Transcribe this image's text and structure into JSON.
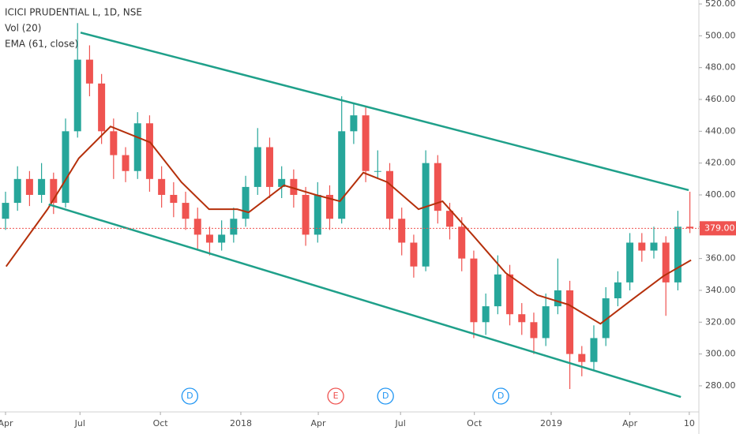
{
  "chart_data": {
    "type": "candlestick",
    "title": "ICICI PRUDENTIAL L, 1D, NSE",
    "indicators": [
      "Vol (20)",
      "EMA (61, close)"
    ],
    "x": [
      0,
      2,
      4,
      6,
      8,
      10,
      12,
      14,
      16,
      18,
      20,
      22,
      24,
      26,
      28,
      30,
      32,
      34,
      36,
      38,
      40,
      42,
      44,
      46,
      48,
      50,
      52,
      54,
      56,
      58,
      60,
      62,
      64,
      66,
      68,
      70,
      72,
      74,
      76,
      78,
      80,
      82,
      84,
      86,
      88,
      90,
      92,
      94,
      96,
      98,
      100,
      102,
      104,
      106,
      108,
      110,
      112,
      114
    ],
    "open": [
      385,
      395,
      410,
      400,
      410,
      395,
      440,
      485,
      470,
      440,
      425,
      415,
      445,
      410,
      400,
      395,
      385,
      375,
      370,
      375,
      385,
      405,
      430,
      405,
      410,
      400,
      375,
      400,
      385,
      440,
      450,
      415,
      415,
      385,
      370,
      355,
      420,
      390,
      380,
      360,
      320,
      330,
      350,
      325,
      320,
      310,
      330,
      340,
      300,
      295,
      310,
      335,
      345,
      370,
      365,
      370,
      345,
      380
    ],
    "high": [
      402,
      418,
      415,
      420,
      414,
      448,
      508,
      494,
      476,
      448,
      430,
      452,
      450,
      418,
      408,
      402,
      392,
      380,
      384,
      392,
      412,
      442,
      436,
      418,
      416,
      405,
      408,
      406,
      462,
      458,
      455,
      428,
      420,
      392,
      375,
      428,
      425,
      395,
      386,
      365,
      338,
      362,
      356,
      332,
      326,
      338,
      360,
      346,
      305,
      318,
      342,
      352,
      376,
      376,
      380,
      374,
      390,
      402
    ],
    "low": [
      378,
      390,
      393,
      395,
      388,
      392,
      436,
      462,
      432,
      410,
      408,
      410,
      402,
      392,
      386,
      378,
      366,
      362,
      365,
      370,
      380,
      400,
      398,
      398,
      392,
      368,
      370,
      378,
      382,
      432,
      408,
      410,
      378,
      362,
      348,
      352,
      382,
      372,
      352,
      310,
      312,
      325,
      318,
      312,
      300,
      305,
      325,
      278,
      286,
      290,
      305,
      330,
      340,
      358,
      360,
      324,
      340,
      376
    ],
    "close": [
      395,
      410,
      400,
      410,
      395,
      440,
      485,
      470,
      440,
      425,
      415,
      445,
      410,
      400,
      395,
      385,
      375,
      370,
      375,
      385,
      405,
      430,
      405,
      410,
      400,
      375,
      400,
      385,
      440,
      450,
      415,
      415,
      385,
      370,
      355,
      420,
      390,
      380,
      360,
      320,
      330,
      350,
      325,
      320,
      310,
      330,
      340,
      300,
      295,
      310,
      335,
      345,
      370,
      365,
      370,
      345,
      380,
      379
    ],
    "up_color": "#26a69a",
    "down_color": "#ef5350",
    "ema": {
      "color": "#b5300b",
      "x": [
        0.1,
        7,
        12.2,
        17.5,
        24.1,
        29.3,
        33.9,
        38.6,
        40.5,
        46.4,
        51.7,
        55.7,
        59.6,
        63.6,
        68.8,
        72.8,
        78,
        83.3,
        88.6,
        93.8,
        99.1,
        104.3,
        109.6,
        114.2
      ],
      "values": [
        355,
        391,
        423,
        443,
        433,
        408,
        391,
        391,
        389,
        406,
        400,
        396,
        414,
        408,
        391,
        396,
        374,
        351,
        337,
        331,
        319,
        334,
        349,
        359
      ]
    },
    "trendlines": [
      {
        "color": "#1fa08a",
        "x": [
          12.5,
          113.8
        ],
        "values": [
          502,
          403
        ]
      },
      {
        "color": "#1fa08a",
        "x": [
          7.2,
          112.5
        ],
        "values": [
          394,
          273
        ]
      }
    ],
    "last_price": {
      "value": 379,
      "label": "379.00",
      "color": "#ef5350"
    },
    "events": [
      {
        "label": "D",
        "x": 30.7
      },
      {
        "label": "E",
        "x": 55
      },
      {
        "label": "D",
        "x": 63.3
      },
      {
        "label": "D",
        "x": 82.5
      }
    ],
    "xlim": [
      -0.92,
      115.5
    ],
    "xticks": [
      {
        "value": 0,
        "label": "Apr"
      },
      {
        "value": 12.4,
        "label": "Jul"
      },
      {
        "value": 25.8,
        "label": "Oct"
      },
      {
        "value": 39.2,
        "label": "2018"
      },
      {
        "value": 52.1,
        "label": "Apr"
      },
      {
        "value": 65.8,
        "label": "Jul"
      },
      {
        "value": 78.1,
        "label": "Oct"
      },
      {
        "value": 90.9,
        "label": "2019"
      },
      {
        "value": 104,
        "label": "Apr"
      },
      {
        "value": 113.9,
        "label": "10"
      }
    ],
    "ylim": [
      263.6,
      522.5
    ],
    "yticks": [
      {
        "value": 280,
        "label": "280.00"
      },
      {
        "value": 300,
        "label": "300.00"
      },
      {
        "value": 320,
        "label": "320.00"
      },
      {
        "value": 340,
        "label": "340.00"
      },
      {
        "value": 360,
        "label": "360.00"
      },
      {
        "value": 380,
        "label": "380.00"
      },
      {
        "value": 400,
        "label": "400.00"
      },
      {
        "value": 420,
        "label": "420.00"
      },
      {
        "value": 440,
        "label": "440.00"
      },
      {
        "value": 460,
        "label": "460.00"
      },
      {
        "value": 480,
        "label": "480.00"
      },
      {
        "value": 500,
        "label": "500.00"
      },
      {
        "value": 520,
        "label": "520.00"
      }
    ]
  }
}
